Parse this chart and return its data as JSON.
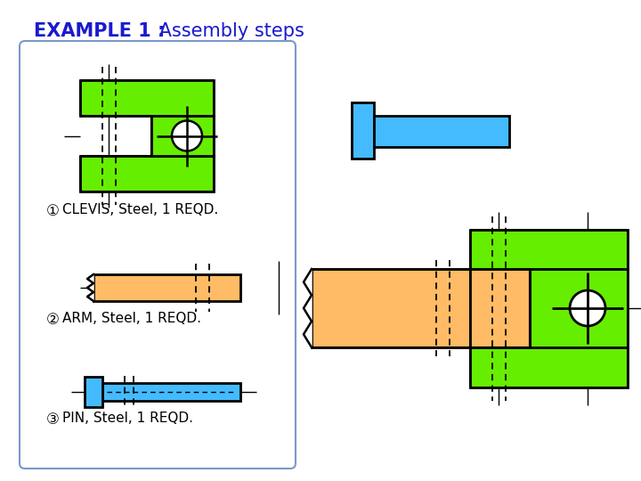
{
  "title_bold": "EXAMPLE 1 :",
  "title_normal": " Assembly steps",
  "title_color": "#1a1acd",
  "bg_color": "#ffffff",
  "green_color": "#66ee00",
  "orange_color": "#ffbb66",
  "blue_color": "#44bbff",
  "black_color": "#000000",
  "white_color": "#ffffff",
  "box_outline_color": "#7799cc",
  "label1": "CLEVIS, Steel, 1 REQD.",
  "label2": "ARM, Steel, 1 REQD.",
  "label3": "PIN, Steel, 1 REQD."
}
